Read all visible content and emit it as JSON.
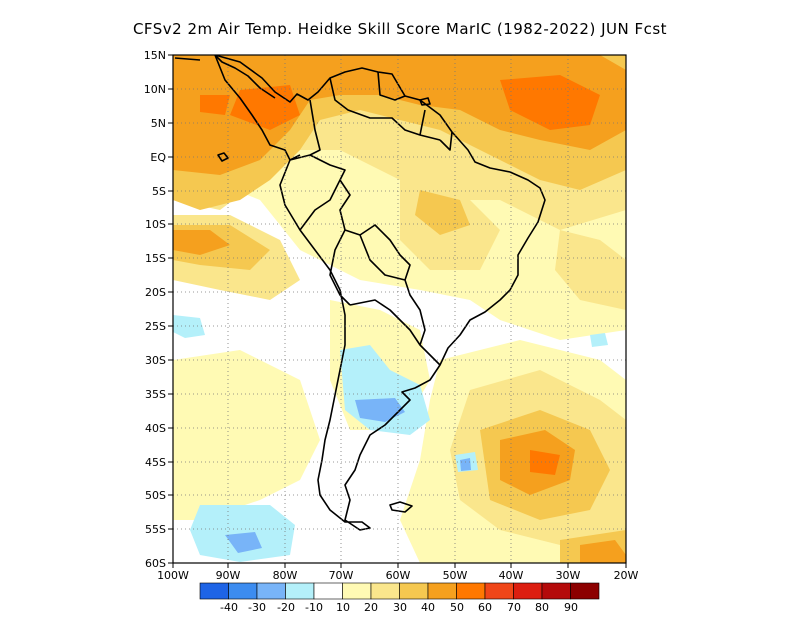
{
  "title": "CFSv2  2m Air Temp. Heidke Skill Score MarIC (1982-2022) JUN Fcst",
  "lat_labels": [
    "15N",
    "10N",
    "5N",
    "EQ",
    "5S",
    "10S",
    "15S",
    "20S",
    "25S",
    "30S",
    "35S",
    "40S",
    "45S",
    "50S",
    "55S",
    "60S"
  ],
  "lon_labels": [
    "100W",
    "90W",
    "80W",
    "70W",
    "60W",
    "50W",
    "40W",
    "30W",
    "20W"
  ],
  "colorbar": {
    "labels": [
      "-40",
      "-30",
      "-20",
      "-10",
      "10",
      "20",
      "30",
      "40",
      "50",
      "60",
      "70",
      "80",
      "90"
    ],
    "colors": [
      "#1e64e6",
      "#3c8cf0",
      "#78b4f8",
      "#b4f0fa",
      "#ffffff",
      "#fffab4",
      "#fae68c",
      "#f5c850",
      "#f5a01e",
      "#ff7800",
      "#f04618",
      "#dc1e10",
      "#b40a0a",
      "#8c0000"
    ]
  },
  "palette": {
    "ocean_bg": "#ffffff",
    "light_yellow": "#fffab4",
    "yellow": "#fae68c",
    "gold": "#f5c850",
    "orange": "#f5a01e",
    "dark_orange": "#ff7800",
    "light_blue": "#b4f0fa",
    "blue": "#78b4f8",
    "dark_blue": "#3c8cf0"
  }
}
